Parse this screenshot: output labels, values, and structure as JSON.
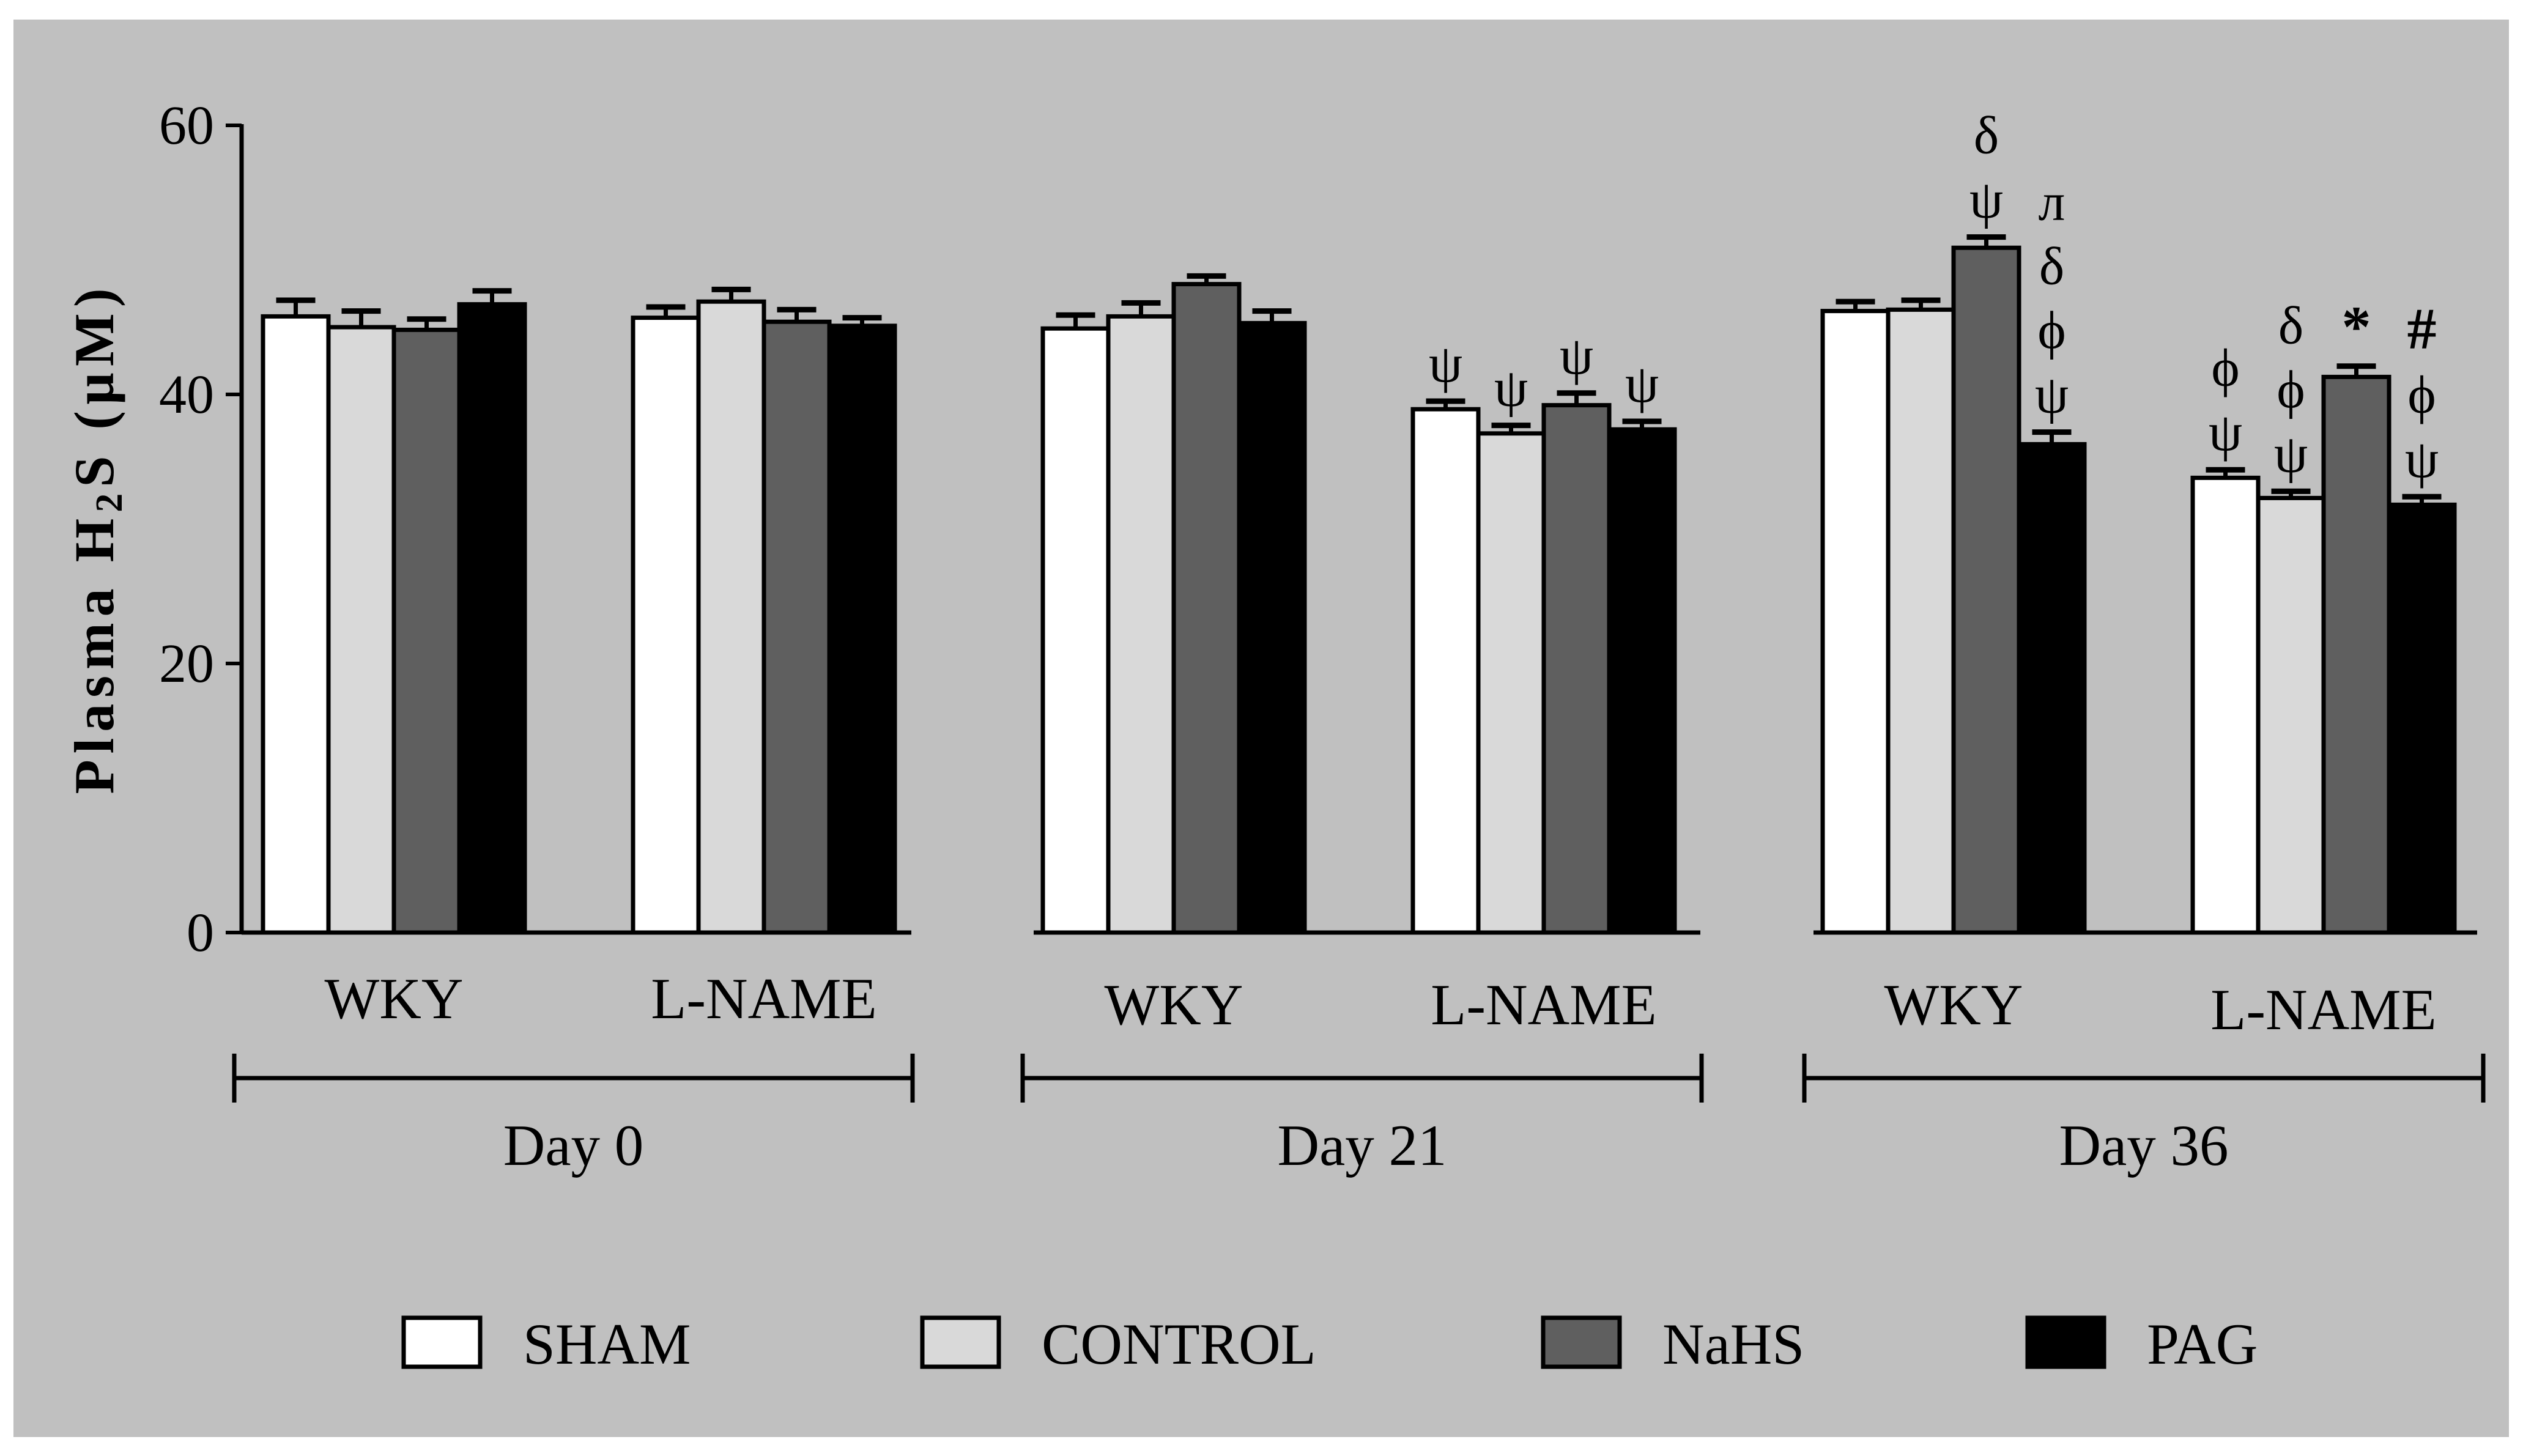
{
  "chart_data": {
    "type": "bar",
    "ylabel_parts": [
      "Plasma H",
      "2",
      "S (µM)"
    ],
    "ylim": [
      0,
      60
    ],
    "yticks": [
      "0",
      "20",
      "40",
      "60"
    ],
    "grid": false,
    "legend_position": "bottom",
    "colors": {
      "background": "#c0c0c0",
      "SHAM": "#ffffff",
      "CONTROL": "#d9d9d9",
      "NaHS": "#5f5f5f",
      "PAG": "#000000"
    },
    "series": [
      {
        "name": "SHAM"
      },
      {
        "name": "CONTROL"
      },
      {
        "name": "NaHS"
      },
      {
        "name": "PAG"
      }
    ],
    "periods": [
      {
        "label": "Day 0",
        "groups": [
          {
            "label": "WKY",
            "values": [
              45.8,
              45.0,
              44.8,
              46.7
            ],
            "errors": [
              1.2,
              1.2,
              0.8,
              1.0
            ],
            "annotations": [
              [],
              [],
              [],
              []
            ]
          },
          {
            "label": "L-NAME",
            "values": [
              45.7,
              46.9,
              45.4,
              45.1
            ],
            "errors": [
              0.8,
              0.9,
              0.9,
              0.6
            ],
            "annotations": [
              [],
              [],
              [],
              []
            ]
          }
        ]
      },
      {
        "label": "Day 21",
        "groups": [
          {
            "label": "WKY",
            "values": [
              44.9,
              45.8,
              48.2,
              45.3
            ],
            "errors": [
              1.0,
              1.0,
              0.6,
              0.9
            ],
            "annotations": [
              [],
              [],
              [],
              []
            ]
          },
          {
            "label": "L-NAME",
            "values": [
              38.9,
              37.1,
              39.2,
              37.4
            ],
            "errors": [
              0.6,
              0.6,
              0.9,
              0.6
            ],
            "annotations": [
              [
                "ψ"
              ],
              [
                "ψ"
              ],
              [
                "ψ"
              ],
              [
                "ψ"
              ]
            ]
          }
        ]
      },
      {
        "label": "Day 36",
        "groups": [
          {
            "label": "WKY",
            "values": [
              46.2,
              46.3,
              50.9,
              36.3
            ],
            "errors": [
              0.7,
              0.7,
              0.8,
              0.9
            ],
            "annotations": [
              [],
              [],
              [
                "δ",
                "ψ"
              ],
              [
                "л",
                "δ",
                "ϕ",
                "ψ"
              ]
            ]
          },
          {
            "label": "L-NAME",
            "values": [
              33.8,
              32.3,
              41.3,
              31.8
            ],
            "errors": [
              0.6,
              0.5,
              0.8,
              0.6
            ],
            "annotations": [
              [
                "ϕ",
                "ψ"
              ],
              [
                "δ",
                "ϕ",
                "ψ"
              ],
              [
                "*"
              ],
              [
                "#",
                "ϕ",
                "ψ"
              ]
            ]
          }
        ]
      }
    ]
  }
}
